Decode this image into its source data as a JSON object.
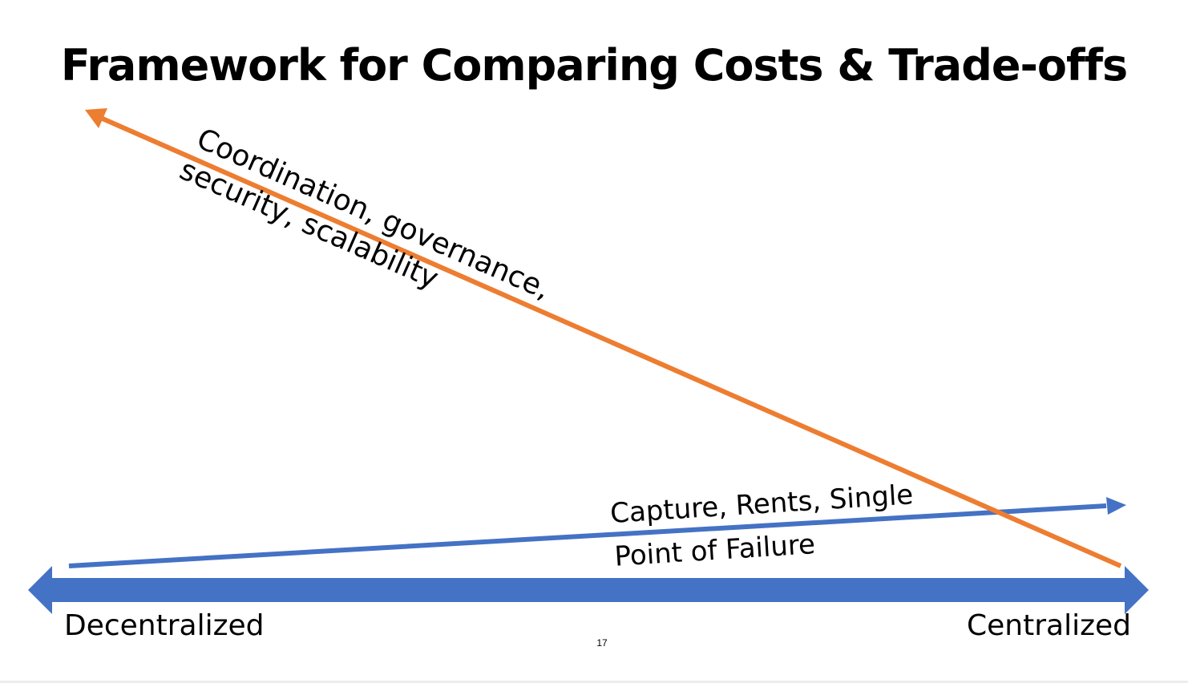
{
  "slide": {
    "title": "Framework for Comparing Costs & Trade-offs",
    "page_number": "17"
  },
  "spectrum": {
    "left_label": "Decentralized",
    "right_label": "Centralized",
    "color": "#4472C4"
  },
  "decentralized_costs": {
    "label_line1": "Coordination, governance,",
    "label_line2": "security, scalability",
    "color": "#ED7D31"
  },
  "centralized_costs": {
    "label_line1": "Capture, Rents, Single",
    "label_line2": "Point of Failure",
    "color": "#4472C4"
  }
}
